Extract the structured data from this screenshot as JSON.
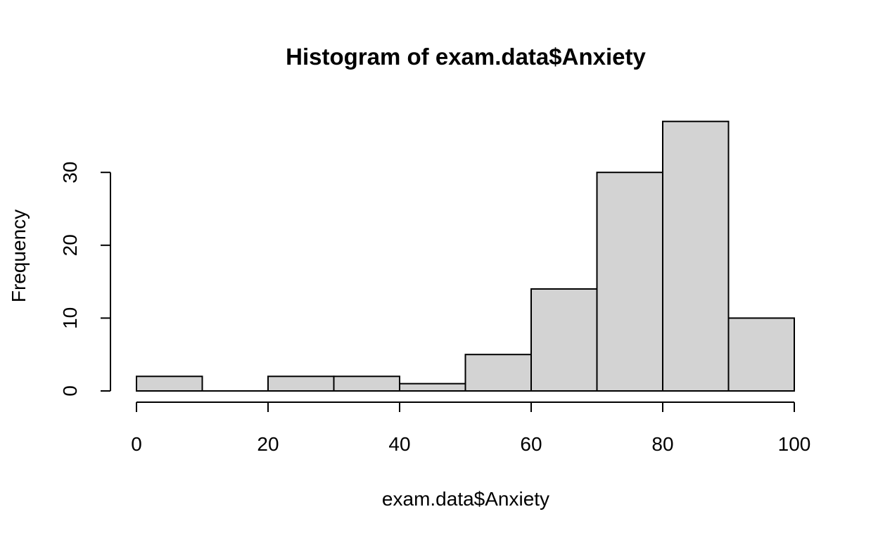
{
  "chart_data": {
    "type": "bar",
    "title": "Histogram of exam.data$Anxiety",
    "xlabel": "exam.data$Anxiety",
    "ylabel": "Frequency",
    "bins": [
      {
        "from": 0,
        "to": 10,
        "count": 2
      },
      {
        "from": 10,
        "to": 20,
        "count": 0
      },
      {
        "from": 20,
        "to": 30,
        "count": 2
      },
      {
        "from": 30,
        "to": 40,
        "count": 2
      },
      {
        "from": 40,
        "to": 50,
        "count": 1
      },
      {
        "from": 50,
        "to": 60,
        "count": 5
      },
      {
        "from": 60,
        "to": 70,
        "count": 14
      },
      {
        "from": 70,
        "to": 80,
        "count": 30
      },
      {
        "from": 80,
        "to": 90,
        "count": 37
      },
      {
        "from": 90,
        "to": 100,
        "count": 10
      }
    ],
    "xlim": [
      0,
      100
    ],
    "ylim": [
      0,
      37
    ],
    "x_ticks": [
      0,
      20,
      40,
      60,
      80,
      100
    ],
    "y_ticks": [
      0,
      10,
      20,
      30
    ],
    "bar_fill": "#d3d3d3",
    "bar_stroke": "#000000",
    "grid": false,
    "legend": "none"
  }
}
